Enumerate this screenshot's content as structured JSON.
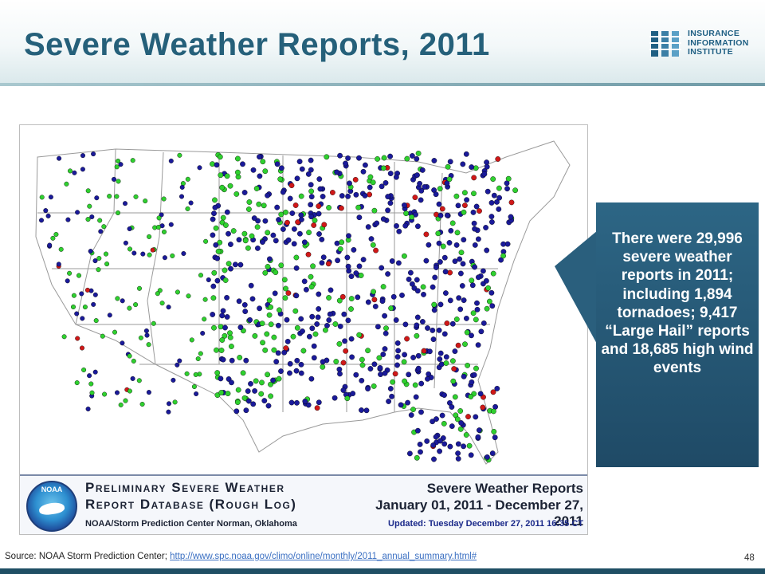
{
  "slide": {
    "title": "Severe Weather Reports, 2011",
    "page_number": "48"
  },
  "logo": {
    "line1": "INSURANCE",
    "line2": "INFORMATION",
    "line3": "INSTITUTE",
    "icon": "iii-logo-icon"
  },
  "callout": {
    "text": "There were 29,996 severe weather reports in 2011; including 1,894 tornadoes; 9,417 “Large Hail” reports and 18,685 high wind events"
  },
  "map_banner": {
    "title_line1": "Preliminary Severe Weather",
    "title_line2": "Report Database (Rough Log)",
    "org": "NOAA/Storm Prediction Center   Norman, Oklahoma",
    "logo_label": "NOAA",
    "right_title": "Severe Weather Reports",
    "right_dates": "January 01, 2011 - December 27, 2011",
    "updated": "Updated: Tuesday December 27, 2011 16:35 CT"
  },
  "map_legend_colors": {
    "tornado": "#d01818",
    "hail": "#2fd02f",
    "wind": "#1a1a9a"
  },
  "source": {
    "label": "Source: NOAA Storm Prediction Center; ",
    "url": "http://www.spc.noaa.gov/climo/online/monthly/2011_annual_summary.html#"
  },
  "colors": {
    "title": "#25607a",
    "callout": "#2a5f7d",
    "bottom_bar": "#1f4f64"
  }
}
